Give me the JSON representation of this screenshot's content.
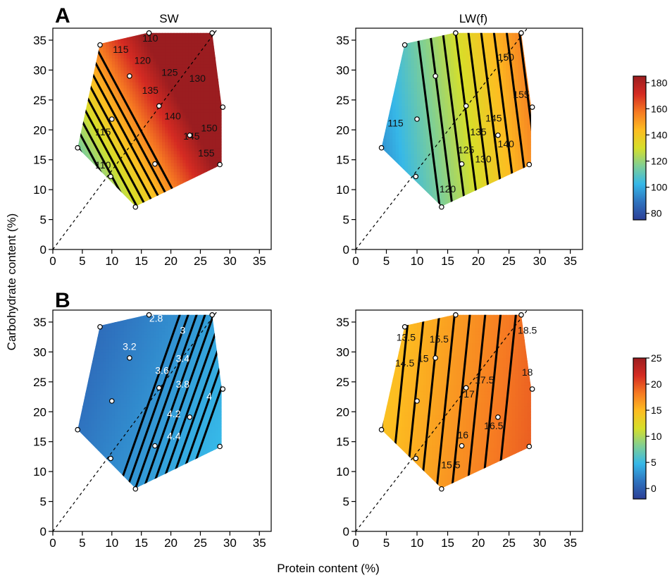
{
  "panel_letters": [
    "A",
    "B"
  ],
  "column_titles": [
    "SW",
    "LW(f)"
  ],
  "ylabel": "Carbohydrate content (%)",
  "xlabel": "Protein content (%)",
  "colors": {
    "scale": [
      "#2c3f96",
      "#2f73bf",
      "#36b8e8",
      "#7fcf95",
      "#d6df2a",
      "#fdbd21",
      "#f67a22",
      "#d52b22",
      "#9b1d20"
    ],
    "contour": "#000000",
    "diagonal": "#000000"
  },
  "chart_data": [
    {
      "type": "heatmap",
      "panel": "A",
      "title": "SW",
      "xlim": [
        0,
        37
      ],
      "ylim": [
        0,
        37
      ],
      "xticks": [
        0,
        5,
        10,
        15,
        20,
        25,
        30,
        35
      ],
      "yticks": [
        0,
        5,
        10,
        15,
        20,
        25,
        30,
        35
      ],
      "diagonal": true,
      "region": [
        [
          8,
          34.4
        ],
        [
          16,
          36.2
        ],
        [
          27,
          36.2
        ],
        [
          28.6,
          24
        ],
        [
          28.6,
          14.2
        ],
        [
          14,
          7.2
        ],
        [
          4.2,
          17
        ]
      ],
      "points": [
        [
          4.2,
          17
        ],
        [
          8,
          34.2
        ],
        [
          9.8,
          12.2
        ],
        [
          10,
          21.8
        ],
        [
          13,
          29
        ],
        [
          14,
          7.1
        ],
        [
          16.3,
          36.2
        ],
        [
          17.3,
          14.3
        ],
        [
          18,
          24
        ],
        [
          23.2,
          19.1
        ],
        [
          27,
          36.2
        ],
        [
          28.3,
          14.2
        ],
        [
          28.8,
          23.8
        ]
      ],
      "color_range": [
        75,
        185
      ],
      "field": {
        "base": 70,
        "px": 3.3,
        "cy": 1.8
      },
      "contour_labels": [
        {
          "x": 11.5,
          "y": 33.3,
          "text": "115",
          "value": 115
        },
        {
          "x": 16.5,
          "y": 35.2,
          "text": "110",
          "value": 110
        },
        {
          "x": 15.2,
          "y": 31.5,
          "text": "120",
          "value": 120
        },
        {
          "x": 19.8,
          "y": 29.5,
          "text": "125",
          "value": 125
        },
        {
          "x": 24.5,
          "y": 28.5,
          "text": "130",
          "value": 130
        },
        {
          "x": 16.5,
          "y": 26.5,
          "text": "135",
          "value": 135
        },
        {
          "x": 20.3,
          "y": 22.2,
          "text": "140",
          "value": 140
        },
        {
          "x": 23.5,
          "y": 18.8,
          "text": "145",
          "value": 145
        },
        {
          "x": 26.5,
          "y": 20.2,
          "text": "150",
          "value": 150
        },
        {
          "x": 26,
          "y": 16,
          "text": "155",
          "value": 155
        },
        {
          "x": 8.5,
          "y": 19.5,
          "text": "115",
          "value": 115
        },
        {
          "x": 8.5,
          "y": 14,
          "text": "110",
          "value": 110
        }
      ]
    },
    {
      "type": "heatmap",
      "panel": "A",
      "title": "LW(f)",
      "xlim": [
        0,
        37
      ],
      "ylim": [
        0,
        37
      ],
      "xticks": [
        0,
        5,
        10,
        15,
        20,
        25,
        30,
        35
      ],
      "yticks": [
        0,
        5,
        10,
        15,
        20,
        25,
        30,
        35
      ],
      "diagonal": true,
      "region": [
        [
          8,
          34.4
        ],
        [
          16,
          36.2
        ],
        [
          27,
          36.2
        ],
        [
          28.6,
          24
        ],
        [
          28.6,
          14.2
        ],
        [
          14,
          7.2
        ],
        [
          4.2,
          17
        ]
      ],
      "points": [
        [
          4.2,
          17
        ],
        [
          8,
          34.2
        ],
        [
          9.8,
          12.2
        ],
        [
          10,
          21.8
        ],
        [
          13,
          29
        ],
        [
          14,
          7.1
        ],
        [
          16.3,
          36.2
        ],
        [
          17.3,
          14.3
        ],
        [
          18,
          24
        ],
        [
          23.2,
          19.1
        ],
        [
          27,
          36.2
        ],
        [
          28.3,
          14.2
        ],
        [
          28.8,
          23.8
        ]
      ],
      "color_range": [
        75,
        185
      ],
      "field": {
        "base": 80,
        "px": 2.4,
        "cy": 0.3
      },
      "contour_labels": [
        {
          "x": 6.5,
          "y": 21,
          "text": "115",
          "value": 115
        },
        {
          "x": 15,
          "y": 10,
          "text": "120",
          "value": 120
        },
        {
          "x": 18,
          "y": 16.5,
          "text": "125",
          "value": 125
        },
        {
          "x": 20.8,
          "y": 15,
          "text": "130",
          "value": 130
        },
        {
          "x": 20,
          "y": 19.5,
          "text": "135",
          "value": 135
        },
        {
          "x": 24.5,
          "y": 17.5,
          "text": "140",
          "value": 140
        },
        {
          "x": 22.5,
          "y": 21.8,
          "text": "145",
          "value": 145
        },
        {
          "x": 24.5,
          "y": 32,
          "text": "150",
          "value": 150
        },
        {
          "x": 27,
          "y": 25.8,
          "text": "155",
          "value": 155
        }
      ]
    },
    {
      "type": "heatmap",
      "panel": "B",
      "title": "",
      "xlim": [
        0,
        37
      ],
      "ylim": [
        0,
        37
      ],
      "xticks": [
        0,
        5,
        10,
        15,
        20,
        25,
        30,
        35
      ],
      "yticks": [
        0,
        5,
        10,
        15,
        20,
        25,
        30,
        35
      ],
      "diagonal": true,
      "region": [
        [
          8,
          34.4
        ],
        [
          16,
          36.2
        ],
        [
          27,
          36.2
        ],
        [
          28.6,
          24
        ],
        [
          28.6,
          14.2
        ],
        [
          14,
          7.2
        ],
        [
          4.2,
          17
        ]
      ],
      "points": [
        [
          4.2,
          17
        ],
        [
          8,
          34.2
        ],
        [
          9.8,
          12.2
        ],
        [
          10,
          21.8
        ],
        [
          13,
          29
        ],
        [
          14,
          7.1
        ],
        [
          16.3,
          36.2
        ],
        [
          17.3,
          14.3
        ],
        [
          18,
          24
        ],
        [
          23.2,
          19.1
        ],
        [
          27,
          36.2
        ],
        [
          28.3,
          14.2
        ],
        [
          28.8,
          23.8
        ]
      ],
      "color_range": [
        -2,
        25
      ],
      "field": {
        "base": 1.6,
        "px": 0.14,
        "cy": -0.05
      },
      "contour_labels": [
        {
          "x": 17.5,
          "y": 35.5,
          "text": "2.8",
          "value": 2.8
        },
        {
          "x": 22,
          "y": 33.5,
          "text": "3",
          "value": 3
        },
        {
          "x": 13,
          "y": 30.8,
          "text": "3.2",
          "value": 3.2
        },
        {
          "x": 22,
          "y": 28.8,
          "text": "3.4",
          "value": 3.4
        },
        {
          "x": 18.5,
          "y": 26.8,
          "text": "3.6",
          "value": 3.6
        },
        {
          "x": 22,
          "y": 24.5,
          "text": "3.8",
          "value": 3.8
        },
        {
          "x": 26.5,
          "y": 22.5,
          "text": "4",
          "value": 4
        },
        {
          "x": 20.5,
          "y": 19.5,
          "text": "4.2",
          "value": 4.2
        },
        {
          "x": 20.5,
          "y": 15.8,
          "text": "4.4",
          "value": 4.4
        }
      ]
    },
    {
      "type": "heatmap",
      "panel": "B",
      "title": "LW(f)",
      "xlim": [
        0,
        37
      ],
      "ylim": [
        0,
        37
      ],
      "xticks": [
        0,
        5,
        10,
        15,
        20,
        25,
        30,
        35
      ],
      "yticks": [
        0,
        5,
        10,
        15,
        20,
        25,
        30,
        35
      ],
      "diagonal": true,
      "region": [
        [
          8,
          34.4
        ],
        [
          16,
          36.2
        ],
        [
          27,
          36.2
        ],
        [
          28.6,
          24
        ],
        [
          28.6,
          14.2
        ],
        [
          14,
          7.2
        ],
        [
          4.2,
          17
        ]
      ],
      "points": [
        [
          4.2,
          17
        ],
        [
          8,
          34.2
        ],
        [
          9.8,
          12.2
        ],
        [
          10,
          21.8
        ],
        [
          13,
          29
        ],
        [
          14,
          7.1
        ],
        [
          16.3,
          36.2
        ],
        [
          17.3,
          14.3
        ],
        [
          18,
          24
        ],
        [
          23.2,
          19.1
        ],
        [
          27,
          36.2
        ],
        [
          28.3,
          14.2
        ],
        [
          28.8,
          23.8
        ]
      ],
      "color_range": [
        -2,
        25
      ],
      "field": {
        "base": 14,
        "px": 0.2,
        "cy": -0.02
      },
      "contour_labels": [
        {
          "x": 8.2,
          "y": 32.3,
          "text": "13.5",
          "value": 13.5
        },
        {
          "x": 8,
          "y": 28,
          "text": "14.5",
          "value": 14.5
        },
        {
          "x": 11,
          "y": 28.8,
          "text": "15",
          "value": 15
        },
        {
          "x": 13.6,
          "y": 32,
          "text": "15.5",
          "value": 15.5
        },
        {
          "x": 28,
          "y": 33.5,
          "text": "18.5",
          "value": 18.5
        },
        {
          "x": 28,
          "y": 26.5,
          "text": "18",
          "value": 18
        },
        {
          "x": 21,
          "y": 25.2,
          "text": "17.5",
          "value": 17.5
        },
        {
          "x": 18.5,
          "y": 22.8,
          "text": "17",
          "value": 17
        },
        {
          "x": 22.5,
          "y": 17.5,
          "text": "16.5",
          "value": 16.5
        },
        {
          "x": 17.5,
          "y": 16,
          "text": "16",
          "value": 16
        },
        {
          "x": 15.5,
          "y": 11,
          "text": "15.5",
          "value": 15.5
        }
      ]
    }
  ],
  "colorbars": [
    {
      "range": [
        75,
        185
      ],
      "ticks": [
        "80",
        "100",
        "120",
        "140",
        "160",
        "180"
      ],
      "tick_values": [
        80,
        100,
        120,
        140,
        160,
        180
      ]
    },
    {
      "range": [
        -2,
        25
      ],
      "ticks": [
        "0",
        "5",
        "10",
        "15",
        "20",
        "25"
      ],
      "tick_values": [
        0,
        5,
        10,
        15,
        20,
        25
      ]
    }
  ]
}
